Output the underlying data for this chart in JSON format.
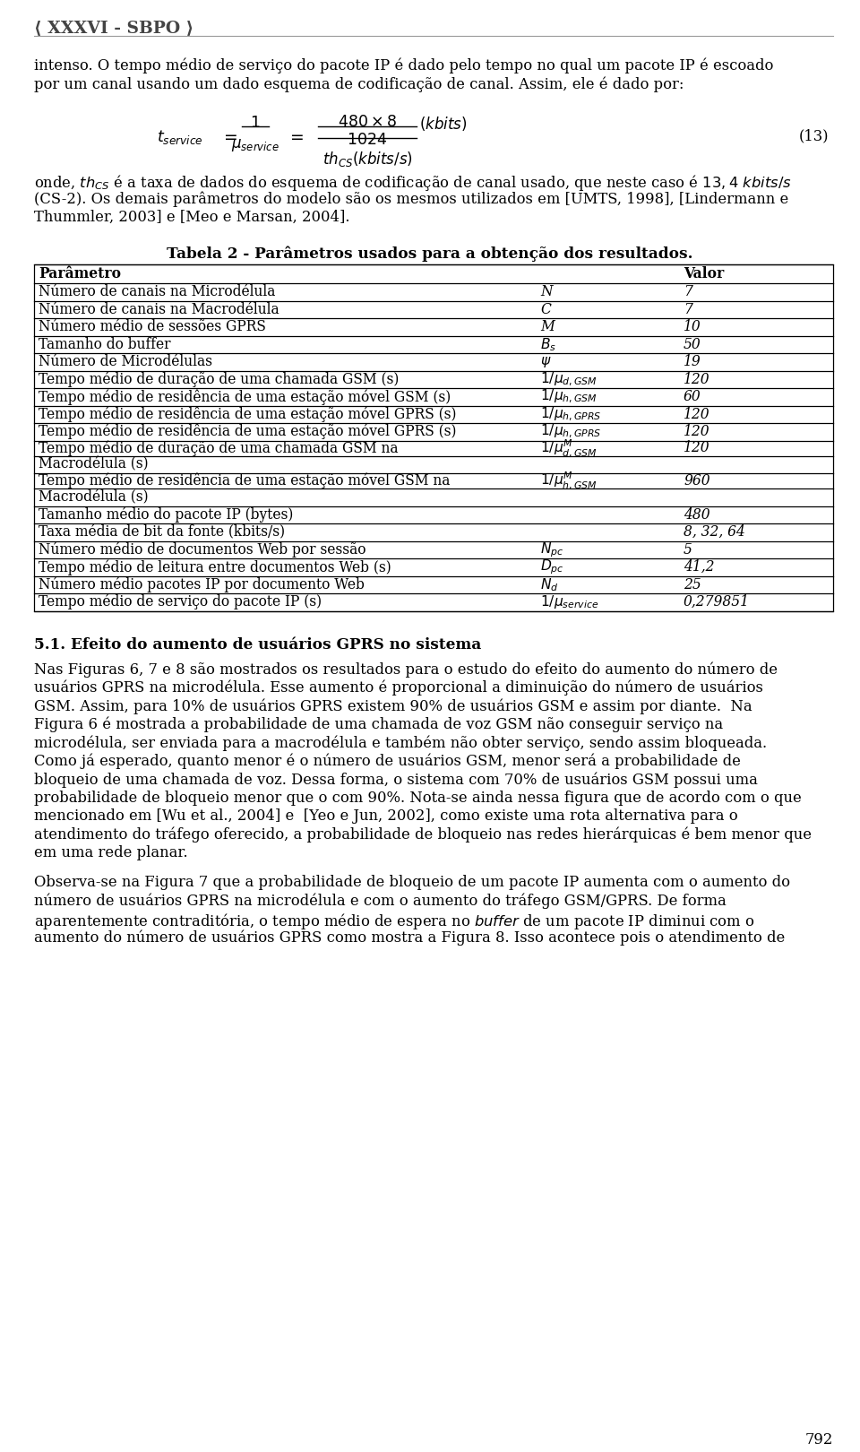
{
  "header": "⟨ XXXVI - SBPO ⟩",
  "para1_l1": "intenso. O tempo médio de serviço do pacote IP é dado pelo tempo no qual um pacote IP é escoado",
  "para1_l2": "por um canal usando um dado esquema de codificação de canal. Assim, ele é dado por:",
  "eq_label": "(13)",
  "onde_l1": "onde, $th_{CS}$ é a taxa de dados do esquema de codificação de canal usado, que neste caso é $13,4$ $kbits/s$",
  "onde_l2": "(CS-2). Os demais parâmetros do modelo são os mesmos utilizados em [UMTS, 1998], [Lindermann e",
  "onde_l3": "Thummler, 2003] e [Meo e Marsan, 2004].",
  "table_title": "Tabela 2 - Parâmetros usados para a obtenção dos resultados.",
  "table_rows": [
    [
      "Parâmetro",
      "",
      "Valor"
    ],
    [
      "Número de canais na Microdélula",
      "N",
      "7"
    ],
    [
      "Número de canais na Macrodélula",
      "C",
      "7"
    ],
    [
      "Número médio de sessões GPRS",
      "M",
      "10"
    ],
    [
      "Tamanho do buffer",
      "B_s",
      "50"
    ],
    [
      "Número de Microdélulas",
      "\\psi",
      "19"
    ],
    [
      "Tempo médio de duração de uma chamada GSM (s)",
      "1/\\mu_{d,GSM}",
      "120"
    ],
    [
      "Tempo médio de residência de uma estação móvel GSM (s)",
      "1/\\mu_{h,GSM}",
      "60"
    ],
    [
      "Tempo médio de residência de uma estação móvel GPRS (s)",
      "1/\\mu_{h,GPRS}",
      "120"
    ],
    [
      "Tempo médio de residência de uma estação móvel GPRS (s)",
      "1/\\mu_{h,GPRS}",
      "120"
    ],
    [
      "Tempo médio de duração de uma chamada GSM na",
      "1/ \\mu^{M}_{d,GSM}",
      "120"
    ],
    [
      "Macrodélula (s)",
      "",
      ""
    ],
    [
      "Tempo médio de residência de uma estação móvel GSM na",
      "1/ \\mu^{M}_{h,GSM}",
      "960"
    ],
    [
      "Macrodélula (s)",
      "",
      ""
    ],
    [
      "Tamanho médio do pacote IP (bytes)",
      "",
      "480"
    ],
    [
      "Taxa média de bit da fonte (kbits/s)",
      "",
      "8, 32, 64"
    ],
    [
      "Número médio de documentos Web por sessão",
      "N_{pc}",
      "5"
    ],
    [
      "Tempo médio de leitura entre documentos Web (s)",
      "D_{pc}",
      "41,2"
    ],
    [
      "Número médio pacotes IP por documento Web",
      "N_d",
      "25"
    ],
    [
      "Tempo médio de serviço do pacote IP (s)",
      "1/\\mu_{service}",
      "0,279851"
    ]
  ],
  "table_row_merged": [
    10,
    12
  ],
  "section_title": "5.1. Efeito do aumento de usuários GPRS no sistema",
  "body1": [
    "Nas Figuras 6, 7 e 8 são mostrados os resultados para o estudo do efeito do aumento do número de",
    "usuários GPRS na microdélula. Esse aumento é proporcional a diminuição do número de usuários",
    "GSM. Assim, para 10% de usuários GPRS existem 90% de usuários GSM e assim por diante.  Na",
    "Figura 6 é mostrada a probabilidade de uma chamada de voz GSM não conseguir serviço na",
    "microdélula, ser enviada para a macrodélula e também não obter serviço, sendo assim bloqueada.",
    "Como já esperado, quanto menor é o número de usuários GSM, menor será a probabilidade de",
    "bloqueio de uma chamada de voz. Dessa forma, o sistema com 70% de usuários GSM possui uma",
    "probabilidade de bloqueio menor que o com 90%. Nota-se ainda nessa figura que de acordo com o que",
    "mencionado em [Wu et al., 2004] e  [Yeo e Jun, 2002], como existe uma rota alternativa para o",
    "atendimento do tráfego oferecido, a probabilidade de bloqueio nas redes hierárquicas é bem menor que",
    "em uma rede planar."
  ],
  "body2": [
    "Observa-se na Figura 7 que a probabilidade de bloqueio de um pacote IP aumenta com o aumento do",
    "número de usuários GPRS na microdélula e com o aumento do tráfego GSM/GPRS. De forma",
    "aparentemente contraditória, o tempo médio de espera no $buffer$ de um pacote IP diminui com o",
    "aumento do número de usuários GPRS como mostra a Figura 8. Isso acontece pois o atendimento de"
  ],
  "page_number": "792",
  "bg_color": "#ffffff"
}
